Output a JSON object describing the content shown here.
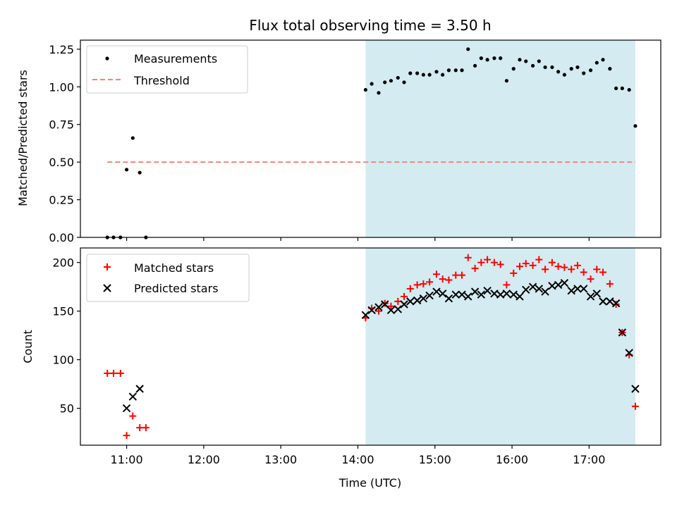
{
  "chart_data": [
    {
      "type": "scatter",
      "title": "Flux total observing time = 3.50 h",
      "xlabel": "",
      "ylabel": "Matched/Predicted stars",
      "xlim": [
        10.4,
        17.93
      ],
      "ylim": [
        0,
        1.31
      ],
      "yticks": [
        0,
        0.25,
        0.5,
        0.75,
        1.0,
        1.25
      ],
      "ytick_labels": [
        "0.00",
        "0.25",
        "0.50",
        "0.75",
        "1.00",
        "1.25"
      ],
      "xticks": [
        11,
        12,
        13,
        14,
        15,
        16,
        17
      ],
      "shaded_span": {
        "x": [
          14.1,
          17.6
        ],
        "color": "#d4ebf1"
      },
      "legend": {
        "placement": "upper-left"
      },
      "series": [
        {
          "name": "Measurements",
          "marker": "dot",
          "color": "#000000",
          "x": [
            10.75,
            10.83,
            10.92,
            11.0,
            11.08,
            11.17,
            11.25,
            14.1,
            14.18,
            14.27,
            14.35,
            14.43,
            14.52,
            14.6,
            14.68,
            14.77,
            14.85,
            14.93,
            15.02,
            15.1,
            15.18,
            15.27,
            15.35,
            15.43,
            15.52,
            15.6,
            15.68,
            15.77,
            15.85,
            15.93,
            16.02,
            16.1,
            16.18,
            16.27,
            16.35,
            16.43,
            16.52,
            16.6,
            16.68,
            16.77,
            16.85,
            16.93,
            17.02,
            17.1,
            17.18,
            17.27,
            17.35,
            17.43,
            17.52,
            17.6
          ],
          "y": [
            0,
            0,
            0,
            0.45,
            0.66,
            0.43,
            0,
            0.98,
            1.02,
            0.96,
            1.03,
            1.04,
            1.06,
            1.03,
            1.09,
            1.09,
            1.08,
            1.08,
            1.1,
            1.08,
            1.11,
            1.11,
            1.11,
            1.25,
            1.14,
            1.19,
            1.18,
            1.19,
            1.19,
            1.04,
            1.12,
            1.18,
            1.17,
            1.14,
            1.17,
            1.13,
            1.13,
            1.1,
            1.08,
            1.12,
            1.13,
            1.09,
            1.11,
            1.16,
            1.18,
            1.12,
            0.99,
            0.99,
            0.98,
            0.74
          ]
        },
        {
          "name": "Threshold",
          "marker": "dashed-line",
          "color": "#ff7f7f",
          "x": [
            10.75,
            17.6
          ],
          "y": [
            0.5,
            0.5
          ]
        }
      ]
    },
    {
      "type": "scatter",
      "title": "",
      "xlabel": "Time (UTC)",
      "ylabel": "Count",
      "xlim": [
        10.4,
        17.93
      ],
      "ylim": [
        12,
        215
      ],
      "yticks": [
        50,
        100,
        150,
        200
      ],
      "ytick_labels": [
        "50",
        "100",
        "150",
        "200"
      ],
      "xticks": [
        11,
        12,
        13,
        14,
        15,
        16,
        17
      ],
      "xtick_labels": [
        "11:00",
        "12:00",
        "13:00",
        "14:00",
        "15:00",
        "16:00",
        "17:00"
      ],
      "shaded_span": {
        "x": [
          14.1,
          17.6
        ],
        "color": "#d4ebf1"
      },
      "legend": {
        "placement": "upper-left"
      },
      "series": [
        {
          "name": "Matched stars",
          "marker": "plus",
          "color": "#ff0000",
          "x": [
            10.75,
            10.83,
            10.92,
            11.0,
            11.08,
            11.17,
            11.25,
            14.1,
            14.18,
            14.27,
            14.35,
            14.43,
            14.52,
            14.6,
            14.68,
            14.77,
            14.85,
            14.93,
            15.02,
            15.1,
            15.18,
            15.27,
            15.35,
            15.43,
            15.52,
            15.6,
            15.68,
            15.77,
            15.85,
            15.93,
            16.02,
            16.1,
            16.18,
            16.27,
            16.35,
            16.43,
            16.52,
            16.6,
            16.68,
            16.77,
            16.85,
            16.93,
            17.02,
            17.1,
            17.18,
            17.27,
            17.35,
            17.43,
            17.52,
            17.6
          ],
          "y": [
            86,
            86,
            86,
            22,
            42,
            30,
            30,
            143,
            153,
            150,
            158,
            155,
            160,
            165,
            173,
            177,
            178,
            180,
            188,
            183,
            182,
            187,
            187,
            205,
            194,
            200,
            203,
            200,
            198,
            177,
            189,
            196,
            199,
            197,
            203,
            193,
            200,
            196,
            195,
            193,
            197,
            190,
            183,
            193,
            190,
            178,
            157,
            128,
            105,
            52
          ]
        },
        {
          "name": "Predicted stars",
          "marker": "x",
          "color": "#000000",
          "x": [
            11.0,
            11.08,
            11.17,
            14.1,
            14.18,
            14.27,
            14.35,
            14.43,
            14.52,
            14.6,
            14.68,
            14.77,
            14.85,
            14.93,
            15.02,
            15.1,
            15.18,
            15.27,
            15.35,
            15.43,
            15.52,
            15.6,
            15.68,
            15.77,
            15.85,
            15.93,
            16.02,
            16.1,
            16.18,
            16.27,
            16.35,
            16.43,
            16.52,
            16.6,
            16.68,
            16.77,
            16.85,
            16.93,
            17.02,
            17.1,
            17.18,
            17.27,
            17.35,
            17.43,
            17.52,
            17.6
          ],
          "y": [
            50,
            62,
            70,
            146,
            151,
            154,
            157,
            151,
            152,
            157,
            160,
            161,
            163,
            166,
            170,
            168,
            163,
            167,
            167,
            165,
            170,
            167,
            171,
            168,
            167,
            168,
            167,
            165,
            172,
            175,
            173,
            170,
            176,
            177,
            179,
            171,
            173,
            173,
            165,
            168,
            160,
            160,
            158,
            128,
            107,
            70
          ]
        }
      ]
    }
  ]
}
